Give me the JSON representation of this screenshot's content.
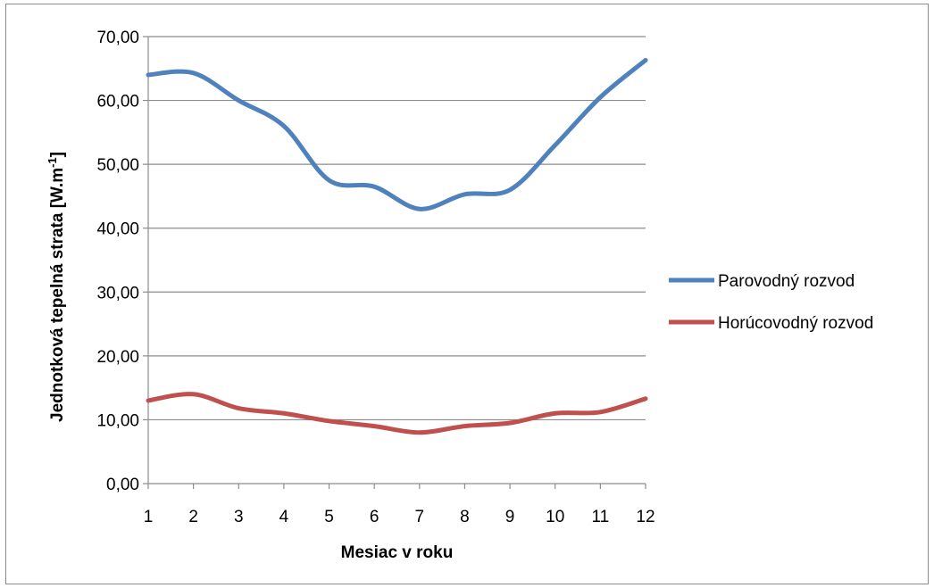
{
  "chart_data": {
    "type": "line",
    "x": [
      1,
      2,
      3,
      4,
      5,
      6,
      7,
      8,
      9,
      10,
      11,
      12
    ],
    "x_tick_labels": [
      "1",
      "2",
      "3",
      "4",
      "5",
      "6",
      "7",
      "8",
      "9",
      "10",
      "11",
      "12"
    ],
    "y_tick_labels": [
      "0,00",
      "10,00",
      "20,00",
      "30,00",
      "40,00",
      "50,00",
      "60,00",
      "70,00"
    ],
    "series": [
      {
        "name": "Parovodný rozvod",
        "color": "#4f81bd",
        "values": [
          64.0,
          64.3,
          60.0,
          56.0,
          47.5,
          46.5,
          43.0,
          45.3,
          46.0,
          53.0,
          60.5,
          66.3
        ]
      },
      {
        "name": "Horúcovodný rozvod",
        "color": "#c0504d",
        "values": [
          13.0,
          14.0,
          11.8,
          11.0,
          9.8,
          9.0,
          8.0,
          9.0,
          9.5,
          11.0,
          11.2,
          13.3
        ]
      }
    ],
    "xlabel": "Mesiac v roku",
    "ylabel_main": "Jednotková tepelná strata [W.m",
    "ylabel_superscript": "-1",
    "ylabel_close": "]",
    "ylim": [
      0,
      70
    ],
    "grid": "horizontal",
    "legend_position": "right"
  }
}
